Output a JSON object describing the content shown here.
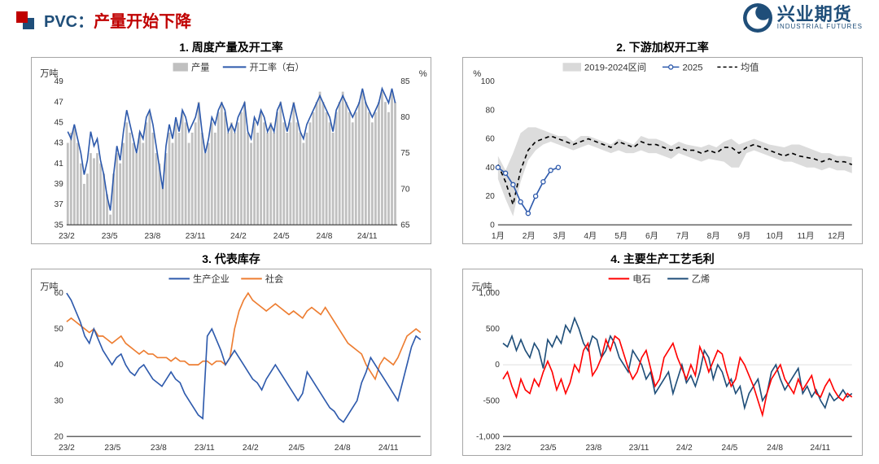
{
  "header": {
    "title_prefix": "PVC：",
    "title_main": "产量开始下降",
    "logo_cn": "兴业期货",
    "logo_en": "INDUSTRIAL FUTURES"
  },
  "colors": {
    "accent_red": "#c00000",
    "accent_blue": "#1f4e79",
    "line_blue": "#2e5aac",
    "line_orange": "#ed7d31",
    "line_red": "#ff0000",
    "line_navy": "#1f4e79",
    "bar_gray": "#c0c0c0",
    "band_gray": "#bfbfbf",
    "border": "#a6a6a6",
    "grid": "#ffffff",
    "text": "#333333"
  },
  "chart1": {
    "title": "1. 周度产量及开工率",
    "type": "bar+line-dual-axis",
    "y_left": {
      "label": "万吨",
      "min": 35,
      "max": 49,
      "step": 2
    },
    "y_right": {
      "label": "%",
      "min": 65,
      "max": 85,
      "step": 5
    },
    "x_ticks": [
      "23/2",
      "23/5",
      "23/8",
      "23/11",
      "24/2",
      "24/5",
      "24/8",
      "24/11"
    ],
    "legend": {
      "bar": "产量",
      "line": "开工率（右）"
    },
    "bars_color": "#c0c0c0",
    "line_color": "#2e5aac",
    "line_width": 1.6,
    "bars": [
      43,
      44,
      44.5,
      43,
      41,
      39,
      40,
      42,
      41.5,
      42,
      41,
      40,
      38,
      36,
      40,
      42,
      41,
      43,
      45,
      44,
      43,
      42,
      44,
      43,
      45,
      46,
      44,
      42,
      41,
      39,
      42,
      44,
      43,
      45,
      44,
      46,
      45,
      43,
      44,
      45,
      47,
      44,
      42,
      43,
      45,
      44,
      46,
      47,
      46,
      44,
      45,
      44,
      45,
      46,
      47,
      44,
      43,
      45,
      44,
      46,
      45,
      44,
      45,
      44,
      46,
      47,
      45,
      44,
      45,
      47,
      45,
      44,
      43,
      44,
      45,
      46,
      47,
      48,
      47,
      46,
      45,
      44,
      46,
      47,
      48,
      47,
      46,
      45,
      46,
      47,
      48,
      47,
      46,
      45,
      46,
      47,
      48,
      47,
      46,
      48,
      47
    ],
    "line": [
      78,
      77,
      79,
      77,
      75,
      72,
      74,
      78,
      76,
      77,
      74,
      72,
      69,
      67,
      72,
      76,
      74,
      78,
      81,
      79,
      77,
      75,
      78,
      77,
      80,
      81,
      79,
      76,
      73,
      70,
      76,
      79,
      77,
      80,
      78,
      81,
      80,
      78,
      79,
      80,
      82,
      78,
      75,
      77,
      80,
      79,
      81,
      82,
      81,
      78,
      79,
      78,
      80,
      81,
      82,
      78,
      77,
      80,
      79,
      81,
      80,
      78,
      79,
      78,
      81,
      82,
      80,
      78,
      80,
      82,
      80,
      78,
      77,
      79,
      80,
      81,
      82,
      83,
      82,
      81,
      80,
      78,
      81,
      82,
      83,
      82,
      81,
      80,
      81,
      82,
      84,
      82,
      81,
      80,
      81,
      82,
      84,
      83,
      82,
      84,
      82
    ]
  },
  "chart2": {
    "title": "2. 下游加权开工率",
    "type": "band+line",
    "y": {
      "label": "%",
      "min": 0,
      "max": 100,
      "step": 20
    },
    "x_ticks": [
      "1月",
      "2月",
      "3月",
      "4月",
      "5月",
      "6月",
      "7月",
      "8月",
      "9月",
      "10月",
      "11月",
      "12月"
    ],
    "legend": {
      "band": "2019-2024区间",
      "line": "2025",
      "dash": "均值"
    },
    "band_color": "#bfbfbf",
    "line_color": "#2e5aac",
    "dash_color": "#000000",
    "band_upper": [
      48,
      38,
      50,
      64,
      68,
      68,
      66,
      64,
      62,
      62,
      58,
      62,
      62,
      60,
      58,
      56,
      60,
      58,
      56,
      62,
      60,
      60,
      58,
      55,
      58,
      56,
      55,
      54,
      56,
      54,
      58,
      60,
      56,
      58,
      60,
      58,
      56,
      55,
      54,
      56,
      56,
      54,
      52,
      50,
      50,
      48,
      48,
      47
    ],
    "band_lower": [
      32,
      18,
      6,
      30,
      45,
      52,
      56,
      58,
      56,
      54,
      52,
      54,
      56,
      54,
      52,
      50,
      52,
      50,
      50,
      52,
      50,
      50,
      48,
      46,
      50,
      48,
      46,
      44,
      46,
      45,
      44,
      40,
      40,
      50,
      52,
      50,
      48,
      46,
      44,
      44,
      42,
      40,
      40,
      38,
      40,
      38,
      38,
      36
    ],
    "mean": [
      42,
      30,
      14,
      38,
      52,
      58,
      60,
      62,
      60,
      58,
      56,
      58,
      60,
      58,
      56,
      54,
      58,
      56,
      54,
      58,
      56,
      56,
      54,
      52,
      54,
      52,
      52,
      50,
      52,
      50,
      54,
      54,
      50,
      54,
      56,
      54,
      52,
      50,
      48,
      50,
      48,
      47,
      46,
      44,
      46,
      44,
      44,
      42
    ],
    "line_2025": [
      40,
      36,
      28,
      16,
      8,
      20,
      30,
      38,
      40
    ]
  },
  "chart3": {
    "title": "3. 代表库存",
    "type": "multi-line",
    "y": {
      "label": "万吨",
      "min": 20,
      "max": 60,
      "step": 10,
      "extra_top": true
    },
    "x_ticks": [
      "23/2",
      "23/5",
      "23/8",
      "23/11",
      "24/2",
      "24/5",
      "24/8",
      "24/11"
    ],
    "legend": {
      "s1": "生产企业",
      "s2": "社会"
    },
    "s1_color": "#2e5aac",
    "s2_color": "#ed7d31",
    "line_width": 1.6,
    "s1": [
      60,
      58,
      55,
      52,
      48,
      46,
      50,
      47,
      44,
      42,
      40,
      42,
      43,
      40,
      38,
      37,
      39,
      40,
      38,
      36,
      35,
      34,
      36,
      38,
      36,
      35,
      32,
      30,
      28,
      26,
      25,
      48,
      50,
      47,
      44,
      40,
      42,
      44,
      42,
      40,
      38,
      36,
      35,
      33,
      36,
      38,
      40,
      38,
      36,
      34,
      32,
      30,
      32,
      38,
      36,
      34,
      32,
      30,
      28,
      27,
      25,
      24,
      26,
      28,
      30,
      35,
      38,
      42,
      40,
      38,
      36,
      34,
      32,
      30,
      35,
      40,
      45,
      48,
      47
    ],
    "s2": [
      52,
      53,
      52,
      51,
      50,
      49,
      50,
      48,
      48,
      47,
      46,
      47,
      48,
      46,
      45,
      44,
      43,
      44,
      43,
      43,
      42,
      42,
      42,
      41,
      42,
      41,
      41,
      40,
      40,
      40,
      41,
      41,
      40,
      41,
      41,
      40,
      42,
      50,
      55,
      58,
      60,
      58,
      57,
      56,
      55,
      56,
      57,
      56,
      55,
      54,
      55,
      54,
      53,
      55,
      56,
      55,
      54,
      56,
      54,
      52,
      50,
      48,
      46,
      45,
      44,
      43,
      40,
      38,
      36,
      40,
      42,
      41,
      40,
      42,
      45,
      48,
      49,
      50,
      49
    ]
  },
  "chart4": {
    "title": "4. 主要生产工艺毛利",
    "type": "multi-line",
    "y": {
      "label": "元/吨",
      "min": -1000,
      "max": 1000,
      "step": 500
    },
    "x_ticks": [
      "23/2",
      "23/5",
      "23/8",
      "23/11",
      "24/2",
      "24/5",
      "24/8",
      "24/11"
    ],
    "legend": {
      "s1": "电石",
      "s2": "乙烯"
    },
    "s1_color": "#ff0000",
    "s2_color": "#1f4e79",
    "line_width": 1.6,
    "s1": [
      -200,
      -100,
      -300,
      -450,
      -200,
      -350,
      -400,
      -200,
      -300,
      -100,
      50,
      -100,
      -350,
      -200,
      -400,
      -250,
      0,
      -100,
      200,
      300,
      -150,
      -50,
      100,
      350,
      200,
      400,
      350,
      150,
      -50,
      -200,
      -100,
      100,
      200,
      -50,
      -300,
      -200,
      100,
      200,
      300,
      100,
      -50,
      -200,
      0,
      -150,
      250,
      100,
      -100,
      50,
      200,
      150,
      -100,
      -300,
      -200,
      100,
      0,
      -150,
      -300,
      -500,
      -700,
      -400,
      -200,
      -100,
      0,
      -200,
      -300,
      -400,
      -200,
      -350,
      -250,
      -150,
      -400,
      -450,
      -300,
      -200,
      -350,
      -450,
      -500,
      -400,
      -450
    ],
    "s2": [
      300,
      250,
      400,
      200,
      350,
      200,
      100,
      300,
      200,
      -50,
      350,
      250,
      400,
      300,
      550,
      450,
      650,
      500,
      300,
      200,
      400,
      350,
      100,
      200,
      400,
      300,
      100,
      0,
      -100,
      200,
      100,
      0,
      -200,
      -100,
      -400,
      -300,
      -200,
      -100,
      -400,
      -200,
      0,
      -250,
      -150,
      -300,
      -100,
      200,
      100,
      -200,
      0,
      -100,
      -300,
      -200,
      -400,
      -300,
      -600,
      -400,
      -300,
      -200,
      -500,
      -400,
      -100,
      0,
      -200,
      -350,
      -250,
      -150,
      -50,
      -400,
      -300,
      -450,
      -350,
      -500,
      -600,
      -400,
      -500,
      -450,
      -350,
      -450,
      -400
    ]
  }
}
